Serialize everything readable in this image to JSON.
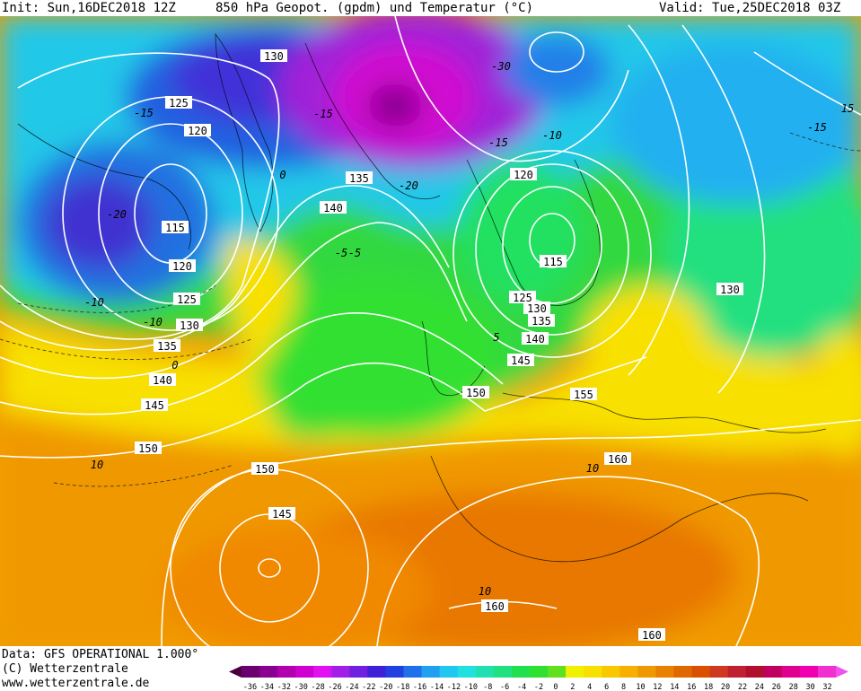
{
  "header": {
    "init": "Init: Sun,16DEC2018 12Z",
    "title": "850 hPa Geopot. (gpdm) und Temperatur (°C)",
    "valid": "Valid: Tue,25DEC2018 03Z"
  },
  "footer": {
    "data_source": "Data: GFS OPERATIONAL 1.000°",
    "copyright": "(C) Wetterzentrale",
    "url": "www.wetterzentrale.de"
  },
  "colorbar": {
    "ticks": [
      "-36",
      "-34",
      "-32",
      "-30",
      "-28",
      "-26",
      "-24",
      "-22",
      "-20",
      "-18",
      "-16",
      "-14",
      "-12",
      "-10",
      "-8",
      "-6",
      "-4",
      "-2",
      "0",
      "2",
      "4",
      "6",
      "8",
      "10",
      "12",
      "14",
      "16",
      "18",
      "20",
      "22",
      "24",
      "26",
      "28",
      "30",
      "32"
    ],
    "colors": [
      "#4a0040",
      "#6a0070",
      "#8a0090",
      "#b000b0",
      "#d000d0",
      "#e010f0",
      "#a020e8",
      "#7020e0",
      "#4020d8",
      "#2040e0",
      "#2070e8",
      "#20a0f0",
      "#20c8f0",
      "#20e0e0",
      "#20e0b0",
      "#20e080",
      "#20e050",
      "#30e030",
      "#60e020",
      "#f0f000",
      "#f8e000",
      "#f8c800",
      "#f8b000",
      "#f09800",
      "#e88000",
      "#e06800",
      "#d85000",
      "#d03820",
      "#c02030",
      "#b01030",
      "#c00060",
      "#e00090",
      "#f000b0",
      "#f030d0",
      "#f050f0"
    ]
  },
  "geopotential_labels": [
    "130",
    "125",
    "120",
    "115",
    "120",
    "125",
    "130",
    "135",
    "140",
    "145",
    "150",
    "135",
    "140",
    "120",
    "115",
    "125",
    "130",
    "135",
    "140",
    "145",
    "150",
    "150",
    "145",
    "160",
    "160",
    "160",
    "155",
    "130",
    "150"
  ],
  "temperature_labels": [
    "-15",
    "-20",
    "-15",
    "-10",
    "-5",
    "0",
    "-10",
    "0",
    "-5",
    "-20",
    "-30",
    "-15",
    "-10",
    "-15",
    "15",
    "10",
    "10",
    "10",
    "5"
  ]
}
